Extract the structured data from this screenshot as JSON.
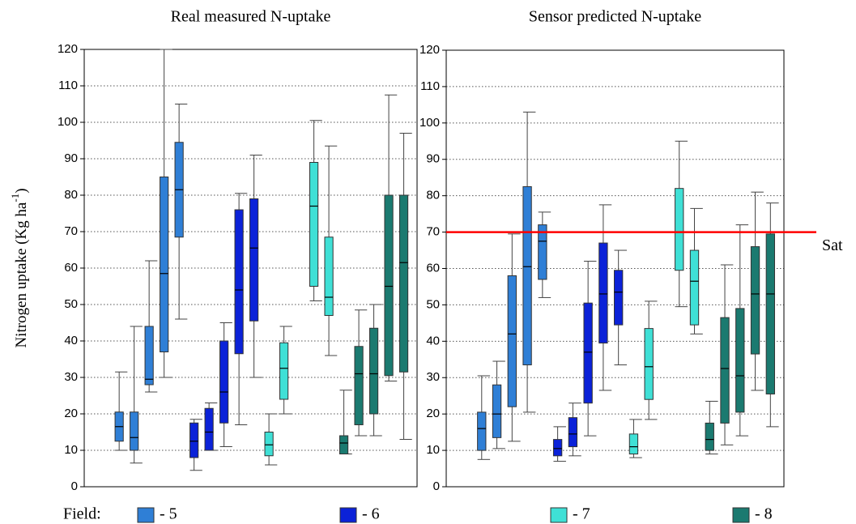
{
  "chart_data": [
    {
      "type": "box",
      "title": "Real measured N-uptake",
      "ylabel": "Nitrogen uptake (Kg ha",
      "ylabel_sup": "-1",
      "ylabel_end": ")",
      "ylim": [
        0,
        120
      ],
      "yticks": [
        0,
        10,
        20,
        30,
        40,
        50,
        60,
        70,
        80,
        90,
        100,
        110,
        120
      ],
      "grid": true,
      "series": [
        {
          "name": "- 5",
          "color": "#2f7fd6",
          "boxes": [
            {
              "whislo": 10,
              "q1": 12.5,
              "med": 16.5,
              "q3": 20.5,
              "whishi": 31.5
            },
            {
              "whislo": 6.5,
              "q1": 10,
              "med": 13.5,
              "q3": 20.5,
              "whishi": 44
            },
            {
              "whislo": 26,
              "q1": 28,
              "med": 29.5,
              "q3": 44,
              "whishi": 62
            },
            {
              "whislo": 30,
              "q1": 37,
              "med": 58.5,
              "q3": 85,
              "whishi": 120
            },
            {
              "whislo": 46,
              "q1": 68.5,
              "med": 81.5,
              "q3": 94.5,
              "whishi": 105
            }
          ]
        },
        {
          "name": "- 6",
          "color": "#0b22d8",
          "boxes": [
            {
              "whislo": 4.5,
              "q1": 8,
              "med": 12.5,
              "q3": 17.5,
              "whishi": 18.5
            },
            {
              "whislo": 10,
              "q1": 10,
              "med": 15,
              "q3": 21.5,
              "whishi": 23
            },
            {
              "whislo": 11,
              "q1": 17.5,
              "med": 26,
              "q3": 40,
              "whishi": 45
            },
            {
              "whislo": 17,
              "q1": 36.5,
              "med": 54,
              "q3": 76,
              "whishi": 80.5
            },
            {
              "whislo": 30,
              "q1": 45.5,
              "med": 65.5,
              "q3": 79,
              "whishi": 91
            }
          ]
        },
        {
          "name": "- 7",
          "color": "#3fe0d6",
          "boxes": [
            {
              "whislo": 6,
              "q1": 8.5,
              "med": 11.5,
              "q3": 15,
              "whishi": 20
            },
            {
              "whislo": 20,
              "q1": 24,
              "med": 32.5,
              "q3": 39.5,
              "whishi": 44
            },
            null,
            {
              "whislo": 51,
              "q1": 55,
              "med": 77,
              "q3": 89,
              "whishi": 100.5
            },
            {
              "whislo": 36,
              "q1": 47,
              "med": 52,
              "q3": 68.5,
              "whishi": 93.5
            }
          ]
        },
        {
          "name": "- 8",
          "color": "#1b7a70",
          "boxes": [
            {
              "whislo": 9,
              "q1": 9,
              "med": 12,
              "q3": 14,
              "whishi": 26.5
            },
            {
              "whislo": 14,
              "q1": 17,
              "med": 31,
              "q3": 38.5,
              "whishi": 48.5
            },
            {
              "whislo": 14,
              "q1": 20,
              "med": 31,
              "q3": 43.5,
              "whishi": 50
            },
            {
              "whislo": 29,
              "q1": 30.5,
              "med": 55,
              "q3": 80,
              "whishi": 107.5
            },
            {
              "whislo": 13,
              "q1": 31.5,
              "med": 61.5,
              "q3": 80,
              "whishi": 97
            }
          ]
        }
      ]
    },
    {
      "type": "box",
      "title": "Sensor predicted N-uptake",
      "ylim": [
        0,
        120
      ],
      "yticks": [
        0,
        10,
        20,
        30,
        40,
        50,
        60,
        70,
        80,
        90,
        100,
        110,
        120
      ],
      "grid": true,
      "reference_line": {
        "value": 70,
        "label": "Sat",
        "color": "#ff0000"
      },
      "series": [
        {
          "name": "- 5",
          "color": "#2f7fd6",
          "boxes": [
            {
              "whislo": 7.5,
              "q1": 10,
              "med": 16,
              "q3": 20.5,
              "whishi": 30.5
            },
            {
              "whislo": 10.5,
              "q1": 13.5,
              "med": 20,
              "q3": 28,
              "whishi": 34.5
            },
            {
              "whislo": 12.5,
              "q1": 22,
              "med": 42,
              "q3": 58,
              "whishi": 69.5
            },
            {
              "whislo": 20.5,
              "q1": 33.5,
              "med": 60.5,
              "q3": 82.5,
              "whishi": 103
            },
            {
              "whislo": 52,
              "q1": 57,
              "med": 67.5,
              "q3": 72,
              "whishi": 75.5
            }
          ]
        },
        {
          "name": "- 6",
          "color": "#0b22d8",
          "boxes": [
            {
              "whislo": 7,
              "q1": 8.5,
              "med": 10.5,
              "q3": 13,
              "whishi": 16.5
            },
            {
              "whislo": 8.5,
              "q1": 11,
              "med": 14.5,
              "q3": 19,
              "whishi": 23
            },
            {
              "whislo": 14,
              "q1": 23,
              "med": 37,
              "q3": 50.5,
              "whishi": 62
            },
            {
              "whislo": 26.5,
              "q1": 39.5,
              "med": 53,
              "q3": 67,
              "whishi": 77.5
            },
            {
              "whislo": 33.5,
              "q1": 44.5,
              "med": 53.5,
              "q3": 59.5,
              "whishi": 65
            }
          ]
        },
        {
          "name": "- 7",
          "color": "#3fe0d6",
          "boxes": [
            {
              "whislo": 8,
              "q1": 9,
              "med": 11,
              "q3": 14.5,
              "whishi": 18.5
            },
            {
              "whislo": 18.5,
              "q1": 24,
              "med": 33,
              "q3": 43.5,
              "whishi": 51
            },
            null,
            {
              "whislo": 49.5,
              "q1": 59.5,
              "med": 70,
              "q3": 82,
              "whishi": 95
            },
            {
              "whislo": 42,
              "q1": 44.5,
              "med": 56.5,
              "q3": 65,
              "whishi": 76.5
            }
          ]
        },
        {
          "name": "- 8",
          "color": "#1b7a70",
          "boxes": [
            {
              "whislo": 9,
              "q1": 10,
              "med": 13,
              "q3": 17.5,
              "whishi": 23.5
            },
            {
              "whislo": 11.5,
              "q1": 17.5,
              "med": 32.5,
              "q3": 46.5,
              "whishi": 61
            },
            {
              "whislo": 14,
              "q1": 20.5,
              "med": 30.5,
              "q3": 49,
              "whishi": 72
            },
            {
              "whislo": 26.5,
              "q1": 36.5,
              "med": 53,
              "q3": 66,
              "whishi": 81
            },
            {
              "whislo": 16.5,
              "q1": 25.5,
              "med": 53,
              "q3": 69.5,
              "whishi": 78
            }
          ]
        }
      ]
    }
  ],
  "legend": {
    "title": "Field:"
  }
}
